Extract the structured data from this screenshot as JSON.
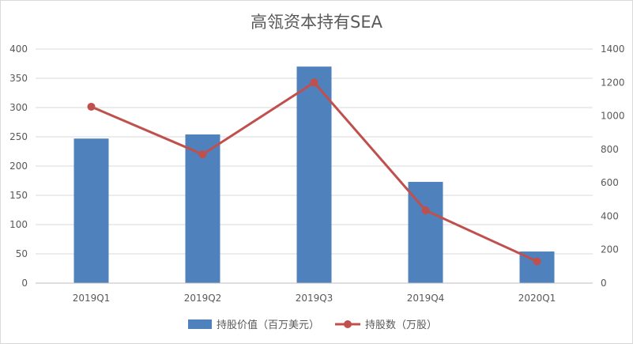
{
  "chart_data": {
    "type": "bar",
    "title": "高瓴资本持有SEA",
    "categories": [
      "2019Q1",
      "2019Q2",
      "2019Q3",
      "2019Q4",
      "2020Q1"
    ],
    "series": [
      {
        "name": "持股价值（百万美元）",
        "type": "bar",
        "axis": "left",
        "color": "#4f81bd",
        "values": [
          247,
          254,
          370,
          173,
          54
        ]
      },
      {
        "name": "持股数（万股）",
        "type": "line",
        "axis": "right",
        "color": "#c0504d",
        "values": [
          1055,
          770,
          1200,
          435,
          130
        ]
      }
    ],
    "y_left": {
      "lim": [
        0,
        400
      ],
      "ticks": [
        "0",
        "50",
        "100",
        "150",
        "200",
        "250",
        "300",
        "350",
        "400"
      ]
    },
    "y_right": {
      "lim": [
        0,
        1400
      ],
      "ticks": [
        "0",
        "200",
        "400",
        "600",
        "800",
        "1000",
        "1200",
        "1400"
      ]
    },
    "grid": true,
    "legend_position": "bottom"
  }
}
